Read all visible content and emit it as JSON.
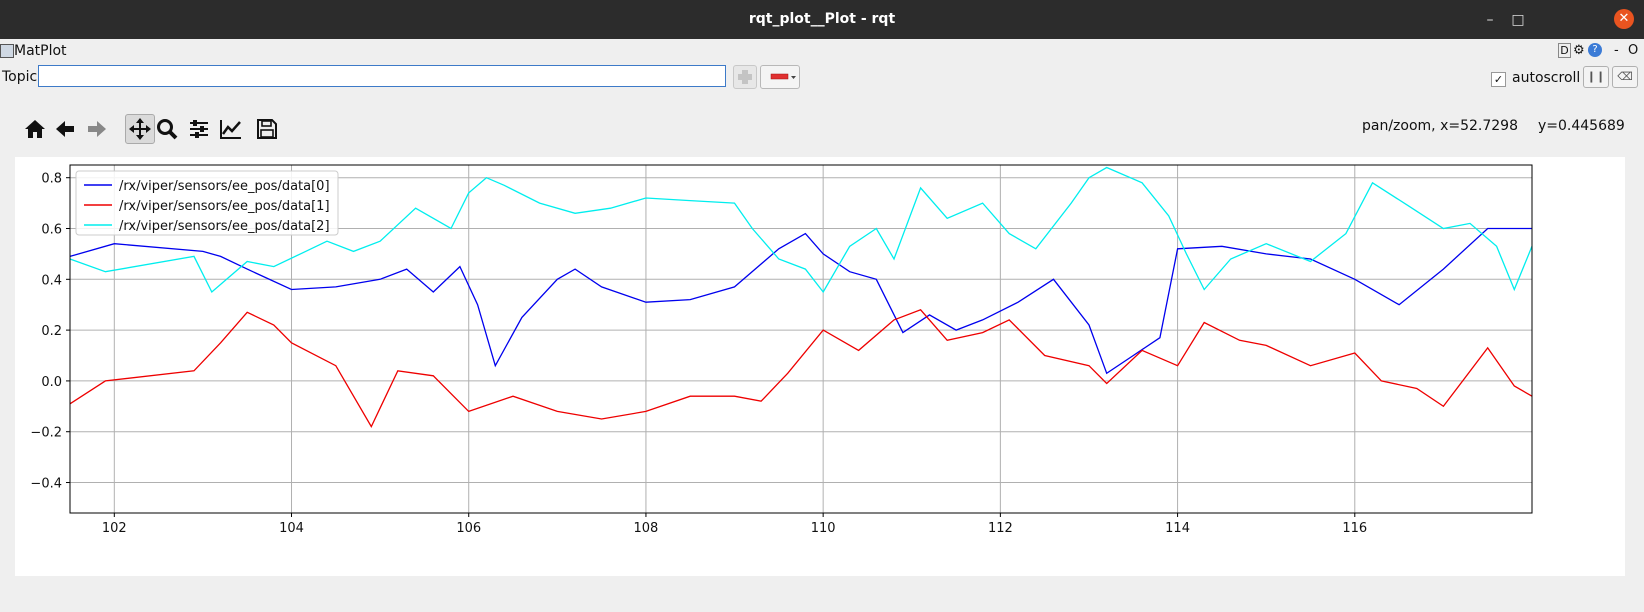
{
  "window": {
    "title": "rqt_plot__Plot - rqt",
    "min_icon": "minimize-icon",
    "max_icon": "maximize-icon",
    "close_icon": "close-icon"
  },
  "menubar": {
    "label": "MatPlot",
    "right_controls": [
      "D",
      "⚙",
      "?",
      "-",
      "O"
    ]
  },
  "topic": {
    "label": "Topic",
    "value": "",
    "add_icon": "plus-icon",
    "remove_icon": "minus-icon"
  },
  "autoscroll": {
    "label": "autoscroll",
    "checked": true,
    "check_glyph": "✓"
  },
  "toolbar": {
    "items": [
      "home-icon",
      "back-icon",
      "forward-icon",
      "pan-icon",
      "zoom-icon",
      "configure-icon",
      "edit-curves-icon",
      "save-icon"
    ]
  },
  "status": {
    "mode": "pan/zoom, x=52.7298",
    "y": "y=0.445689"
  },
  "chart_data": {
    "type": "line",
    "xlim": [
      101.5,
      118
    ],
    "ylim": [
      -0.52,
      0.85
    ],
    "xticks": [
      "102",
      "104",
      "106",
      "108",
      "110",
      "112",
      "114",
      "116"
    ],
    "yticks": [
      "0.8",
      "0.6",
      "0.4",
      "0.2",
      "0.0",
      "−0.2",
      "−0.4"
    ],
    "grid": true,
    "legend_position": "top-left",
    "series": [
      {
        "name": "/rx/viper/sensors/ee_pos/data[0]",
        "color": "#0000ee",
        "x": [
          101.5,
          102,
          103,
          103.2,
          103.5,
          104,
          104.5,
          105,
          105.3,
          105.6,
          105.9,
          106.1,
          106.3,
          106.6,
          107,
          107.2,
          107.5,
          108,
          108.5,
          109,
          109.5,
          109.8,
          110,
          110.3,
          110.6,
          110.9,
          111.2,
          111.5,
          111.8,
          112.2,
          112.6,
          113,
          113.2,
          113.5,
          113.8,
          114,
          114.5,
          115,
          115.5,
          116,
          116.5,
          117,
          117.5,
          118
        ],
        "y": [
          0.49,
          0.54,
          0.51,
          0.49,
          0.44,
          0.36,
          0.37,
          0.4,
          0.44,
          0.35,
          0.45,
          0.3,
          0.06,
          0.25,
          0.4,
          0.44,
          0.37,
          0.31,
          0.32,
          0.37,
          0.52,
          0.58,
          0.5,
          0.43,
          0.4,
          0.19,
          0.26,
          0.2,
          0.24,
          0.31,
          0.4,
          0.22,
          0.03,
          0.1,
          0.17,
          0.52,
          0.53,
          0.5,
          0.48,
          0.4,
          0.3,
          0.44,
          0.6,
          0.6
        ]
      },
      {
        "name": "/rx/viper/sensors/ee_pos/data[1]",
        "color": "#ee0000",
        "x": [
          101.5,
          101.9,
          102.9,
          103.2,
          103.5,
          103.8,
          104,
          104.5,
          104.9,
          105.2,
          105.6,
          106,
          106.5,
          107,
          107.5,
          108,
          108.5,
          109,
          109.3,
          109.6,
          110,
          110.4,
          110.8,
          111.1,
          111.4,
          111.8,
          112.1,
          112.5,
          113,
          113.2,
          113.6,
          114,
          114.3,
          114.7,
          115,
          115.5,
          116,
          116.3,
          116.7,
          117,
          117.5,
          117.8,
          118
        ],
        "y": [
          -0.09,
          0.0,
          0.04,
          0.15,
          0.27,
          0.22,
          0.15,
          0.06,
          -0.18,
          0.04,
          0.02,
          -0.12,
          -0.06,
          -0.12,
          -0.15,
          -0.12,
          -0.06,
          -0.06,
          -0.08,
          0.03,
          0.2,
          0.12,
          0.24,
          0.28,
          0.16,
          0.19,
          0.24,
          0.1,
          0.06,
          -0.01,
          0.12,
          0.06,
          0.23,
          0.16,
          0.14,
          0.06,
          0.11,
          0.0,
          -0.03,
          -0.1,
          0.13,
          -0.02,
          -0.06
        ]
      },
      {
        "name": "/rx/viper/sensors/ee_pos/data[2]",
        "color": "#00eeee",
        "x": [
          101.5,
          101.9,
          102.9,
          103.1,
          103.5,
          103.8,
          104.1,
          104.4,
          104.7,
          105.0,
          105.4,
          105.8,
          106.0,
          106.2,
          106.4,
          106.8,
          107.2,
          107.6,
          108.0,
          108.5,
          109.0,
          109.2,
          109.5,
          109.8,
          110.0,
          110.3,
          110.6,
          110.8,
          111.1,
          111.4,
          111.8,
          112.1,
          112.4,
          112.8,
          113.0,
          113.2,
          113.6,
          113.9,
          114.1,
          114.3,
          114.6,
          115.0,
          115.5,
          115.9,
          116.2,
          116.6,
          117,
          117.3,
          117.6,
          117.8,
          118
        ],
        "y": [
          0.48,
          0.43,
          0.49,
          0.35,
          0.47,
          0.45,
          0.5,
          0.55,
          0.51,
          0.55,
          0.68,
          0.6,
          0.74,
          0.8,
          0.77,
          0.7,
          0.66,
          0.68,
          0.72,
          0.71,
          0.7,
          0.6,
          0.48,
          0.44,
          0.35,
          0.53,
          0.6,
          0.48,
          0.76,
          0.64,
          0.7,
          0.58,
          0.52,
          0.7,
          0.8,
          0.84,
          0.78,
          0.65,
          0.5,
          0.36,
          0.48,
          0.54,
          0.47,
          0.58,
          0.78,
          0.69,
          0.6,
          0.62,
          0.53,
          0.36,
          0.53
        ]
      }
    ]
  }
}
